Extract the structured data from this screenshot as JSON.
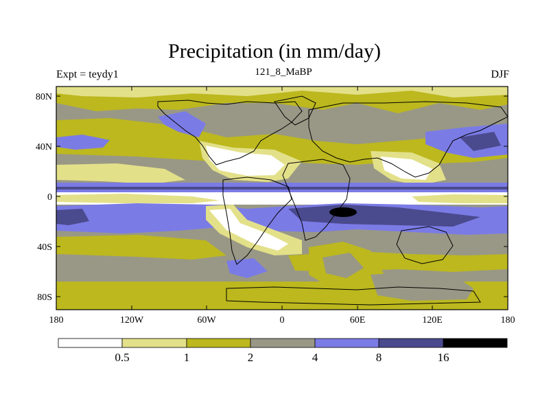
{
  "title": "Precipitation (in mm/day)",
  "left_label": "Expt = teydy1",
  "center_label": "121_8_MaBP",
  "right_label": "DJF",
  "x_ticks": [
    "180",
    "120W",
    "60W",
    "0",
    "60E",
    "120E",
    "180"
  ],
  "y_ticks": [
    "80N",
    "40N",
    "0",
    "40S",
    "80S"
  ],
  "colorbar": {
    "labels": [
      "0.5",
      "1",
      "2",
      "4",
      "8",
      "16"
    ],
    "colors": [
      "#ffffff",
      "#e3e08a",
      "#bcb81e",
      "#999886",
      "#7b7be6",
      "#4a4a8e",
      "#000000"
    ]
  },
  "legend_levels": [
    0.5,
    1,
    2,
    4,
    8,
    16
  ]
}
